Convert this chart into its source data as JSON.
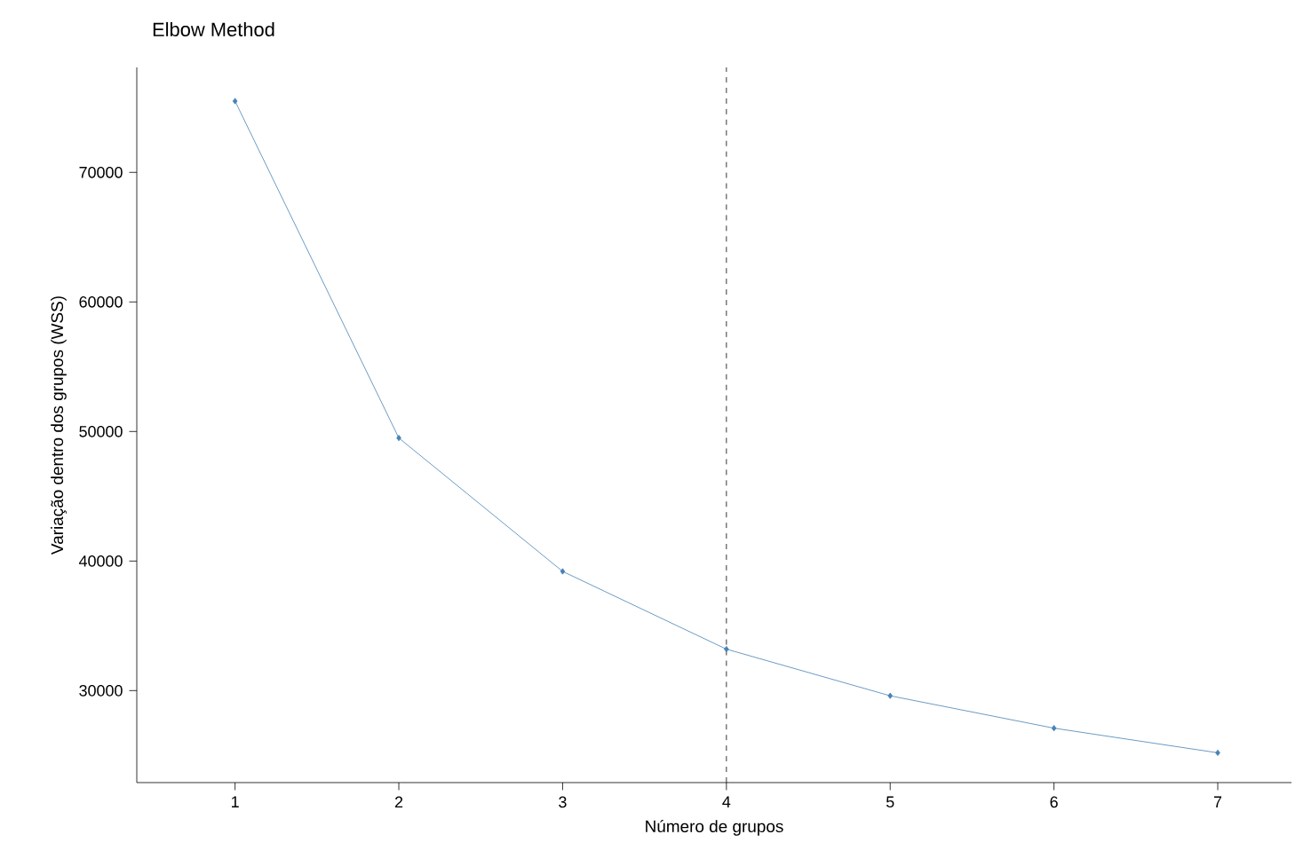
{
  "chart_data": {
    "type": "line",
    "title": "Elbow Method",
    "xlabel": "Número de grupos",
    "ylabel": "Variação dentro dos grupos (WSS)",
    "x": [
      1,
      2,
      3,
      4,
      5,
      6,
      7
    ],
    "series": [
      {
        "color": "#4682b4",
        "values": [
          75500,
          49500,
          39200,
          33200,
          29600,
          27100,
          25200
        ]
      }
    ],
    "xlim": [
      0.4,
      7.45
    ],
    "xticks": [
      1,
      2,
      3,
      4,
      5,
      6,
      7
    ],
    "ylim": [
      22900,
      78100
    ],
    "yticks": [
      30000,
      40000,
      50000,
      60000,
      70000
    ],
    "ref_lines": [
      {
        "axis": "x",
        "value": 4,
        "line_style": "dashed",
        "color": "#000000"
      }
    ],
    "grid": false,
    "marker": "diamond",
    "line_style": "solid"
  }
}
